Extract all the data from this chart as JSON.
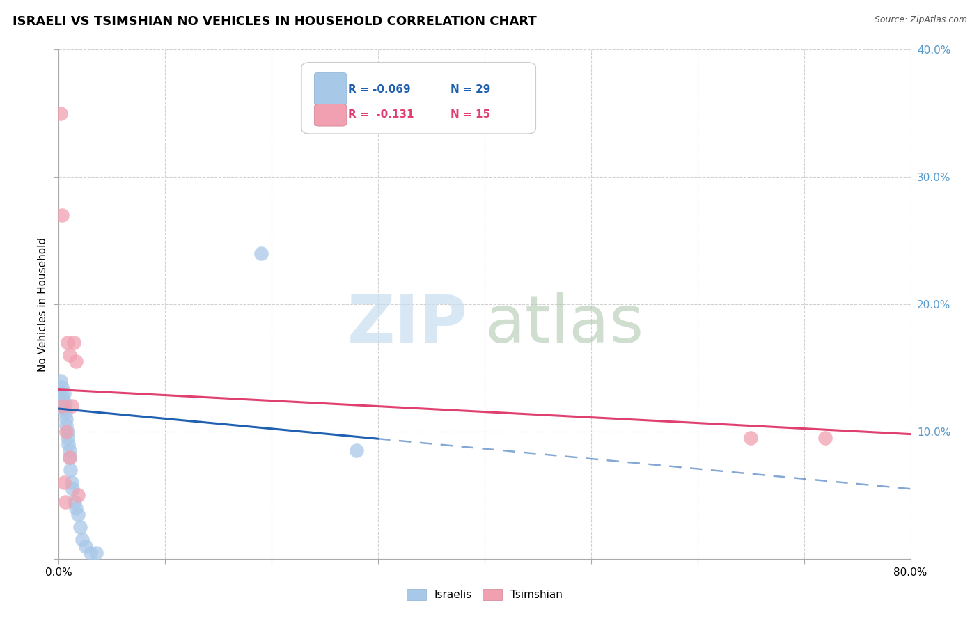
{
  "title": "ISRAELI VS TSIMSHIAN NO VEHICLES IN HOUSEHOLD CORRELATION CHART",
  "source": "Source: ZipAtlas.com",
  "ylabel": "No Vehicles in Household",
  "xlim": [
    0.0,
    0.8
  ],
  "ylim": [
    0.0,
    0.4
  ],
  "israelis_color": "#a8c8e8",
  "tsimshian_color": "#f0a0b0",
  "trendline_israeli_color": "#2060b0",
  "trendline_tsimshian_color": "#e04070",
  "watermark_zip_color": "#c8ddf0",
  "watermark_atlas_color": "#b0c8b0",
  "legend_r1_text": "R = -0.069",
  "legend_n1_text": "N = 29",
  "legend_r2_text": "R =  -0.131",
  "legend_n2_text": "N = 15",
  "israelis_x": [
    0.002,
    0.003,
    0.003,
    0.004,
    0.004,
    0.005,
    0.005,
    0.006,
    0.006,
    0.007,
    0.007,
    0.008,
    0.008,
    0.009,
    0.01,
    0.01,
    0.011,
    0.012,
    0.013,
    0.015,
    0.016,
    0.018,
    0.02,
    0.022,
    0.025,
    0.03,
    0.035,
    0.19,
    0.28
  ],
  "israelis_y": [
    0.14,
    0.135,
    0.128,
    0.125,
    0.12,
    0.13,
    0.118,
    0.122,
    0.115,
    0.11,
    0.105,
    0.1,
    0.095,
    0.09,
    0.085,
    0.08,
    0.07,
    0.06,
    0.055,
    0.045,
    0.04,
    0.035,
    0.025,
    0.015,
    0.01,
    0.005,
    0.005,
    0.24,
    0.085
  ],
  "tsimshian_x": [
    0.002,
    0.003,
    0.004,
    0.005,
    0.006,
    0.007,
    0.008,
    0.01,
    0.01,
    0.012,
    0.014,
    0.016,
    0.018,
    0.65,
    0.72
  ],
  "tsimshian_y": [
    0.35,
    0.27,
    0.12,
    0.06,
    0.045,
    0.1,
    0.17,
    0.16,
    0.08,
    0.12,
    0.17,
    0.155,
    0.05,
    0.095,
    0.095
  ],
  "trend_isr_x0": 0.0,
  "trend_isr_y0": 0.118,
  "trend_isr_x1": 0.8,
  "trend_isr_y1": 0.055,
  "trend_tsim_x0": 0.0,
  "trend_tsim_y0": 0.133,
  "trend_tsim_x1": 0.8,
  "trend_tsim_y1": 0.098,
  "trend_isr_solid_end": 0.3
}
